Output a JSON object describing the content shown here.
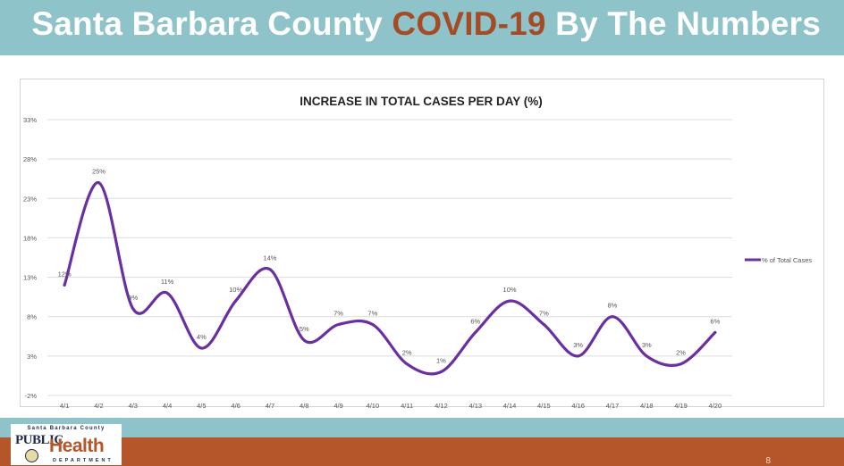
{
  "header": {
    "title_prefix": "Santa Barbara County",
    "title_accent": "COVID-19",
    "title_suffix": "By The Numbers"
  },
  "footer": {
    "page_number": "8",
    "logo": {
      "top_text": "Santa Barbara County",
      "public": "PUBLIC",
      "health": "Health",
      "department": "DEPARTMENT"
    }
  },
  "colors": {
    "header_band": "#8ec3c9",
    "accent": "#a54c26",
    "footer_band": "#b5552a",
    "series_line": "#6a2fa1"
  },
  "chart_data": {
    "type": "line",
    "title": "INCREASE IN TOTAL CASES PER DAY (%)",
    "xlabel": "",
    "ylabel": "",
    "ylim": [
      -2,
      33
    ],
    "yticks": [
      -2,
      3,
      8,
      13,
      18,
      23,
      28,
      33
    ],
    "ytick_labels": [
      "-2%",
      "3%",
      "8%",
      "13%",
      "18%",
      "23%",
      "28%",
      "33%"
    ],
    "grid": true,
    "legend_position": "right",
    "categories": [
      "4/1",
      "4/2",
      "4/3",
      "4/4",
      "4/5",
      "4/6",
      "4/7",
      "4/8",
      "4/9",
      "4/10",
      "4/11",
      "4/12",
      "4/13",
      "4/14",
      "4/15",
      "4/16",
      "4/17",
      "4/18",
      "4/19",
      "4/20"
    ],
    "series": [
      {
        "name": "% of Total Cases",
        "values": [
          12,
          25,
          9,
          11,
          4,
          10,
          14,
          5,
          7,
          7,
          2,
          1,
          6,
          10,
          7,
          3,
          8,
          3,
          2,
          6
        ],
        "data_labels": [
          "12%",
          "25%",
          "9%",
          "11%",
          "4%",
          "10%",
          "14%",
          "5%",
          "7%",
          "7%",
          "2%",
          "1%",
          "6%",
          "10%",
          "7%",
          "3%",
          "8%",
          "3%",
          "2%",
          "6%"
        ]
      }
    ]
  }
}
